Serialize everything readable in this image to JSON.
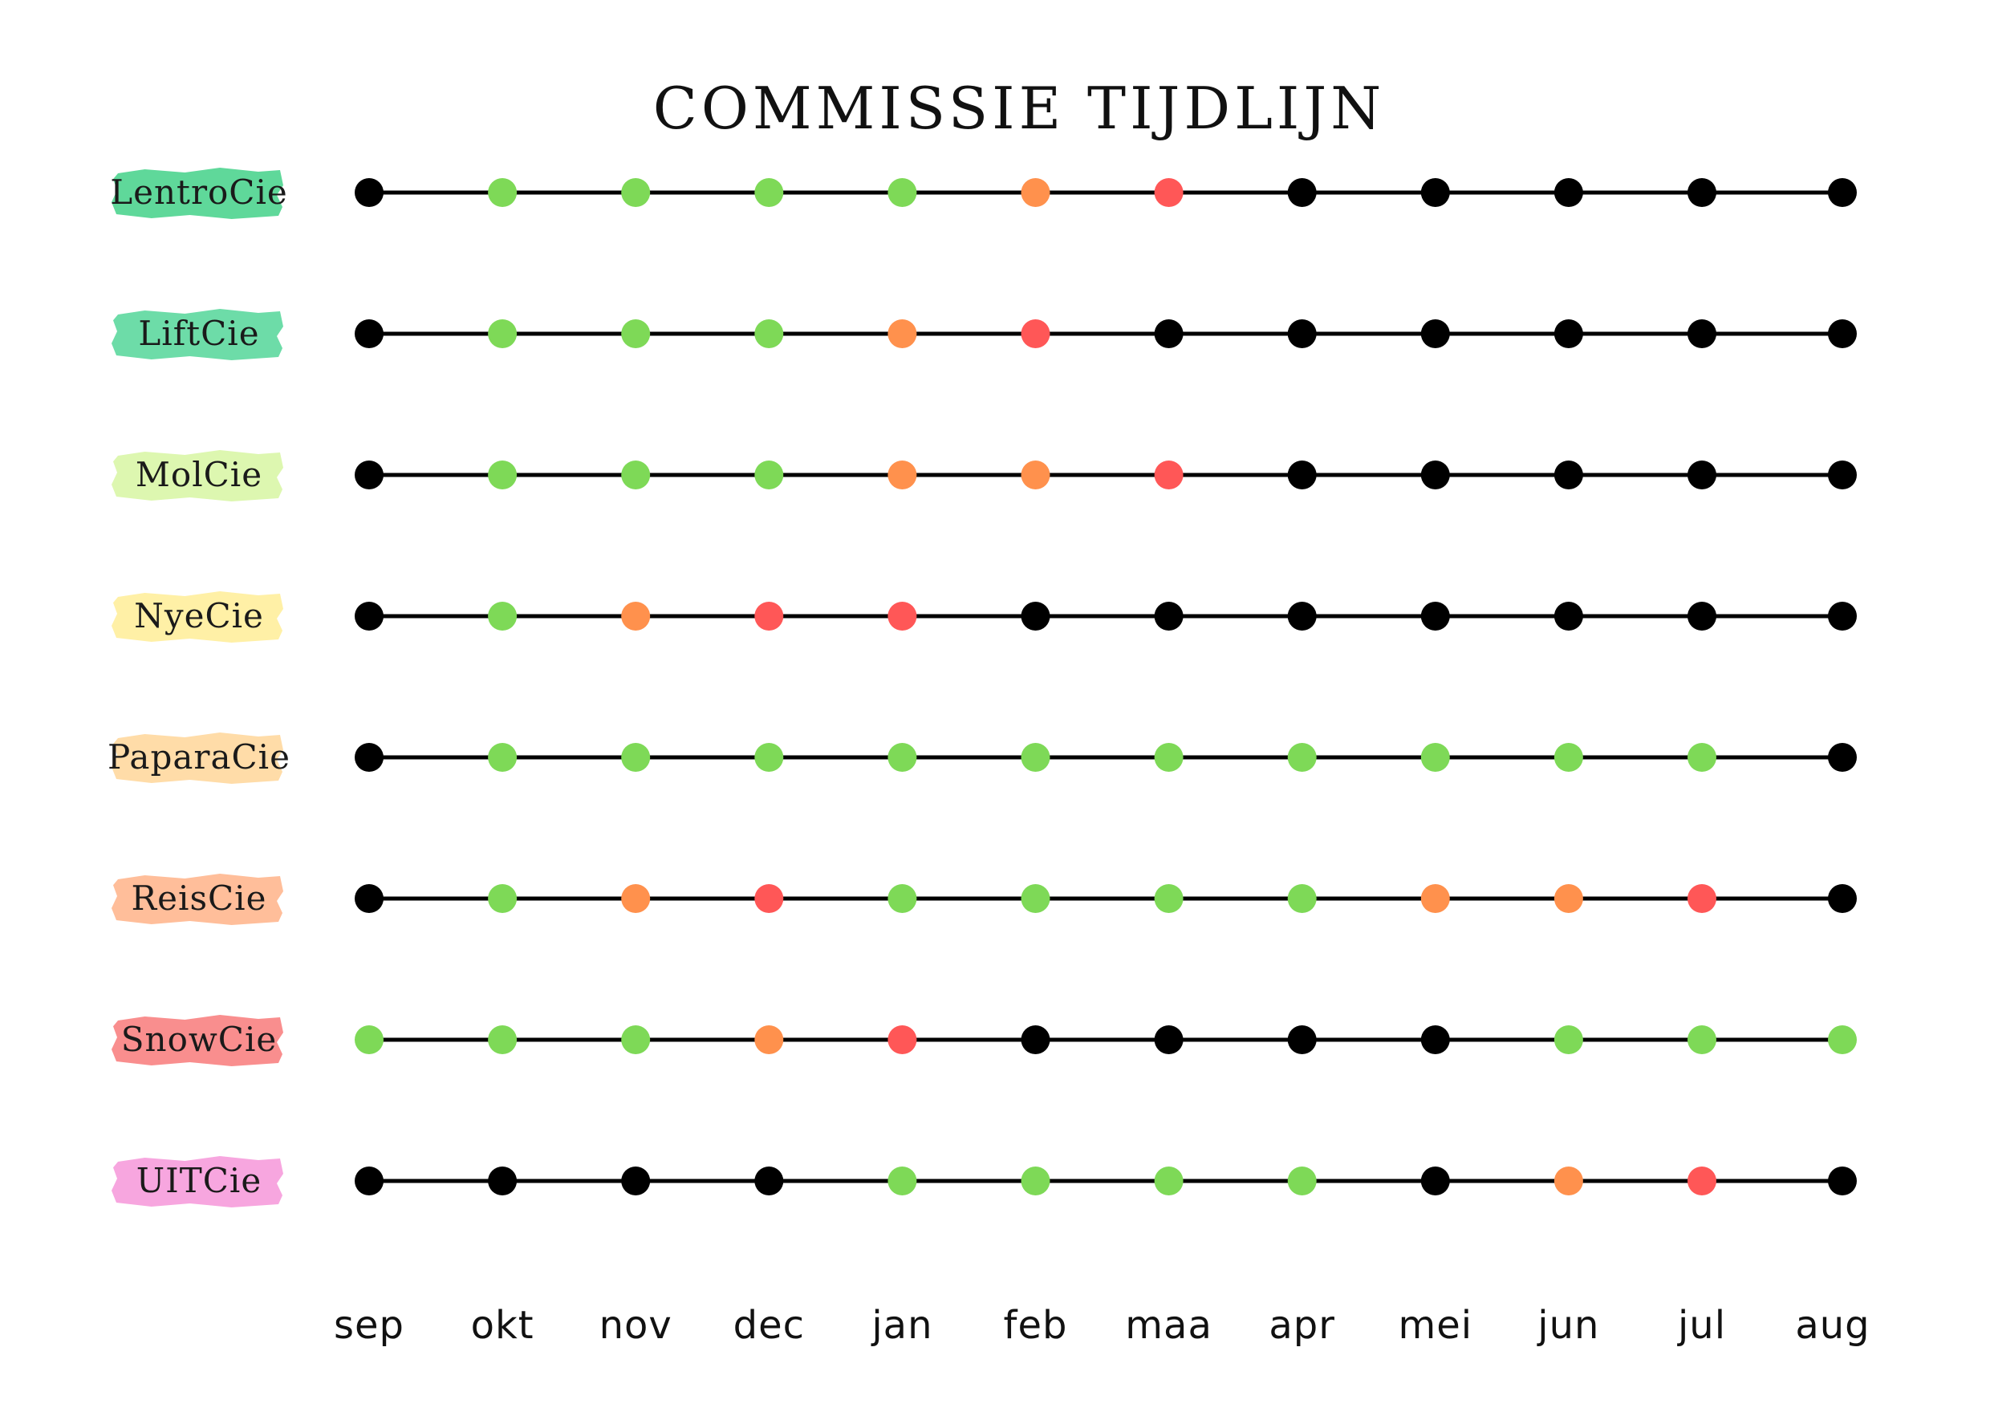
{
  "title": "COMMISSIE TIJDLIJN",
  "colors": {
    "green": "#7ed957",
    "orange": "#ff914d",
    "red": "#ff5757",
    "black": "#000000"
  },
  "months": [
    "sep",
    "okt",
    "nov",
    "dec",
    "jan",
    "feb",
    "maa",
    "apr",
    "mei",
    "jun",
    "jul",
    "aug"
  ],
  "committees": [
    {
      "name": "LentroCie",
      "label_color": "#5fd89a",
      "statuses": [
        "black",
        "green",
        "green",
        "green",
        "green",
        "orange",
        "red",
        "black",
        "black",
        "black",
        "black",
        "black"
      ]
    },
    {
      "name": "LiftCie",
      "label_color": "#6ddca8",
      "statuses": [
        "black",
        "green",
        "green",
        "green",
        "orange",
        "red",
        "black",
        "black",
        "black",
        "black",
        "black",
        "black"
      ]
    },
    {
      "name": "MolCie",
      "label_color": "#ddf7b0",
      "statuses": [
        "black",
        "green",
        "green",
        "green",
        "orange",
        "orange",
        "red",
        "black",
        "black",
        "black",
        "black",
        "black"
      ]
    },
    {
      "name": "NyeCie",
      "label_color": "#fff0a6",
      "statuses": [
        "black",
        "green",
        "orange",
        "red",
        "red",
        "black",
        "black",
        "black",
        "black",
        "black",
        "black",
        "black"
      ]
    },
    {
      "name": "PaparaCie",
      "label_color": "#ffdca8",
      "statuses": [
        "black",
        "green",
        "green",
        "green",
        "green",
        "green",
        "green",
        "green",
        "green",
        "green",
        "green",
        "black"
      ]
    },
    {
      "name": "ReisCie",
      "label_color": "#ffbe9a",
      "statuses": [
        "black",
        "green",
        "orange",
        "red",
        "green",
        "green",
        "green",
        "green",
        "orange",
        "orange",
        "red",
        "black"
      ]
    },
    {
      "name": "SnowCie",
      "label_color": "#f98e8e",
      "statuses": [
        "green",
        "green",
        "green",
        "orange",
        "red",
        "black",
        "black",
        "black",
        "black",
        "green",
        "green",
        "green"
      ]
    },
    {
      "name": "UITCie",
      "label_color": "#f7a6df",
      "statuses": [
        "black",
        "black",
        "black",
        "black",
        "green",
        "green",
        "green",
        "green",
        "black",
        "orange",
        "red",
        "black"
      ]
    }
  ]
}
